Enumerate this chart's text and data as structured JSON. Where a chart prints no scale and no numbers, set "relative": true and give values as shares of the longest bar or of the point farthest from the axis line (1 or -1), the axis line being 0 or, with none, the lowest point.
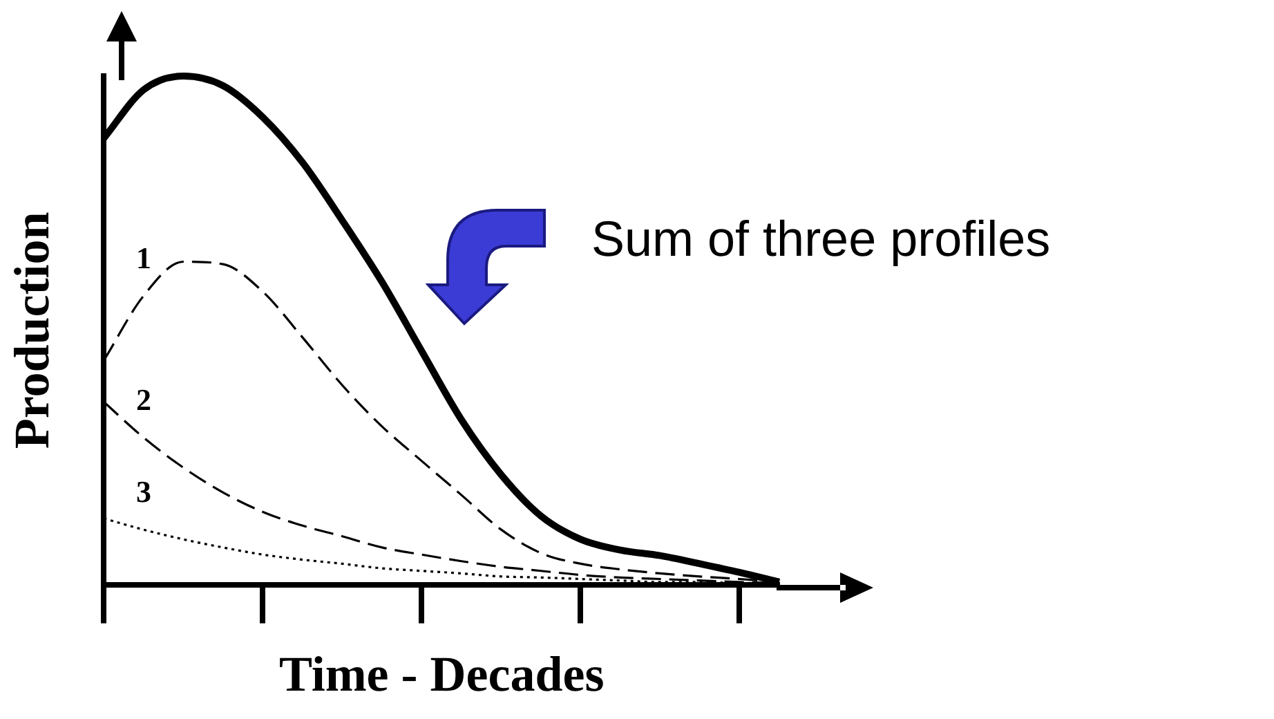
{
  "chart_data": {
    "type": "line",
    "relative": true,
    "xlabel": "Time - Decades",
    "ylabel": "Production",
    "annotations": [
      "Sum of three profiles"
    ],
    "grid": false,
    "legend": false,
    "marker": "none",
    "categories": [
      null,
      null,
      null,
      null,
      null,
      null,
      null,
      null,
      null,
      null,
      null,
      null,
      null,
      null,
      null,
      null,
      null,
      null
    ],
    "series": [
      {
        "color": "#000000",
        "line_style": "solid",
        "values": [
          0.878,
          0.973,
          1.0,
          0.981,
          0.919,
          0.83,
          0.716,
          0.595,
          0.459,
          0.324,
          0.216,
          0.135,
          0.089,
          0.068,
          0.057,
          0.041,
          0.024,
          0.005
        ]
      },
      {
        "name": "1",
        "color": "#000000",
        "line_style": "dashed",
        "values": [
          0.441,
          0.568,
          0.635,
          0.63,
          0.576,
          0.486,
          0.392,
          0.311,
          0.243,
          0.176,
          0.108,
          0.062,
          0.041,
          0.03,
          0.022,
          0.016,
          0.011,
          0.005
        ]
      },
      {
        "name": "2",
        "color": "#000000",
        "line_style": "dashed",
        "values": [
          0.359,
          0.289,
          0.23,
          0.181,
          0.143,
          0.116,
          0.095,
          0.073,
          0.059,
          0.046,
          0.035,
          0.027,
          0.019,
          0.014,
          0.011,
          0.008,
          0.005,
          0.003
        ]
      },
      {
        "name": "3",
        "color": "#000000",
        "line_style": "dotted",
        "values": [
          0.13,
          0.108,
          0.089,
          0.073,
          0.059,
          0.049,
          0.041,
          0.032,
          0.027,
          0.022,
          0.016,
          0.014,
          0.011,
          0.008,
          0.005,
          0.005,
          0.003,
          0.003
        ]
      }
    ]
  }
}
